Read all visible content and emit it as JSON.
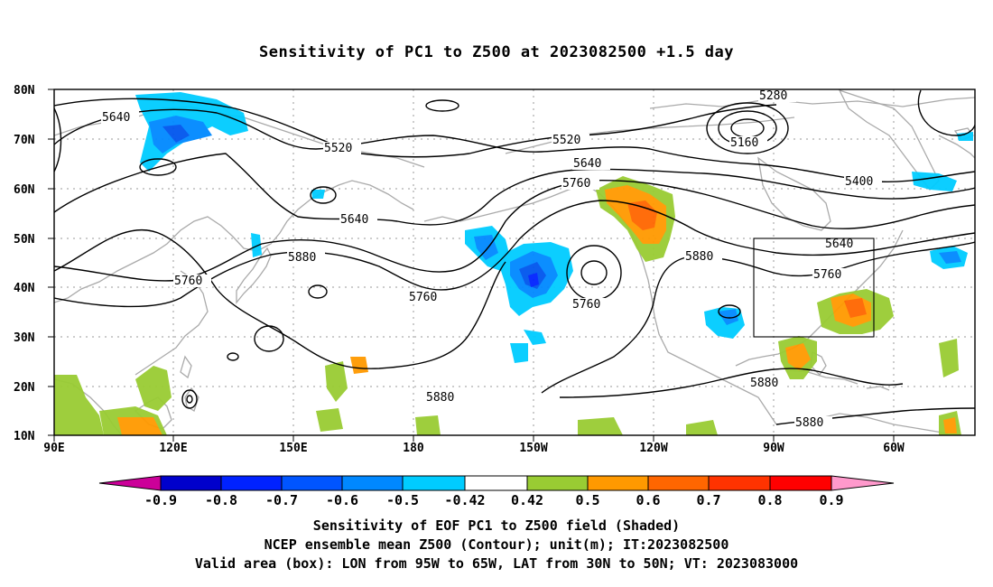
{
  "title": "Sensitivity of PC1 to Z500 at 2023082500 +1.5 day",
  "map": {
    "lon_range": [
      "90E",
      "60W (extends to ~45W)"
    ],
    "lat_range": [
      "10N",
      "80N"
    ],
    "lat_labels": [
      "80N",
      "70N",
      "60N",
      "50N",
      "40N",
      "30N",
      "20N",
      "10N"
    ],
    "lon_labels": [
      "90E",
      "120E",
      "150E",
      "180",
      "150W",
      "120W",
      "90W",
      "60W"
    ],
    "grid": "dotted",
    "coastline_color": "#aaaaaa",
    "contour_color": "#000000"
  },
  "contour_labels": [
    {
      "text": "5640"
    },
    {
      "text": "5520"
    },
    {
      "text": "5640"
    },
    {
      "text": "5760"
    },
    {
      "text": "5880"
    },
    {
      "text": "5760"
    },
    {
      "text": "5520"
    },
    {
      "text": "5640"
    },
    {
      "text": "5760"
    },
    {
      "text": "5760"
    },
    {
      "text": "5880"
    },
    {
      "text": "5880"
    },
    {
      "text": "5280"
    },
    {
      "text": "5160"
    },
    {
      "text": "5400"
    },
    {
      "text": "5640"
    },
    {
      "text": "5760"
    },
    {
      "text": "5880"
    },
    {
      "text": "5880"
    }
  ],
  "shading": {
    "positive_colors": {
      "0.42-0.5": "#99cc33",
      "0.5-0.6": "#ff9900",
      "0.6-0.7": "#ff6600",
      "0.7-0.8": "#ff3300",
      "0.8-0.9": "#ff0000",
      ">0.9": "#ff99cc"
    },
    "negative_colors": {
      "<-0.9": "#cc0099",
      "-0.9--0.8": "#0000cc",
      "-0.8--0.7": "#0033ff",
      "-0.7--0.6": "#0055ee",
      "-0.6--0.5": "#0088ff",
      "-0.5--0.42": "#00ccff"
    }
  },
  "box": {
    "lon_from": "95W",
    "lon_to": "65W",
    "lat_from": "30N",
    "lat_to": "50N"
  },
  "colorbar": {
    "colors": [
      "#cc0099",
      "#0000cc",
      "#0022ff",
      "#0055ff",
      "#0088ff",
      "#00ccff",
      "#ffffff",
      "#99cc33",
      "#ff9900",
      "#ff6600",
      "#ff3300",
      "#ff0000",
      "#ff99cc"
    ],
    "labels": [
      "-0.9",
      "-0.8",
      "-0.7",
      "-0.6",
      "-0.5",
      "-0.42",
      "0.42",
      "0.5",
      "0.6",
      "0.7",
      "0.8",
      "0.9"
    ]
  },
  "captions": [
    "Sensitivity of EOF PC1 to Z500 field (Shaded)",
    "NCEP ensemble mean Z500 (Contour); unit(m); IT:2023082500",
    "Valid area (box): LON from 95W to 65W, LAT from 30N to 50N; VT: 2023083000"
  ]
}
